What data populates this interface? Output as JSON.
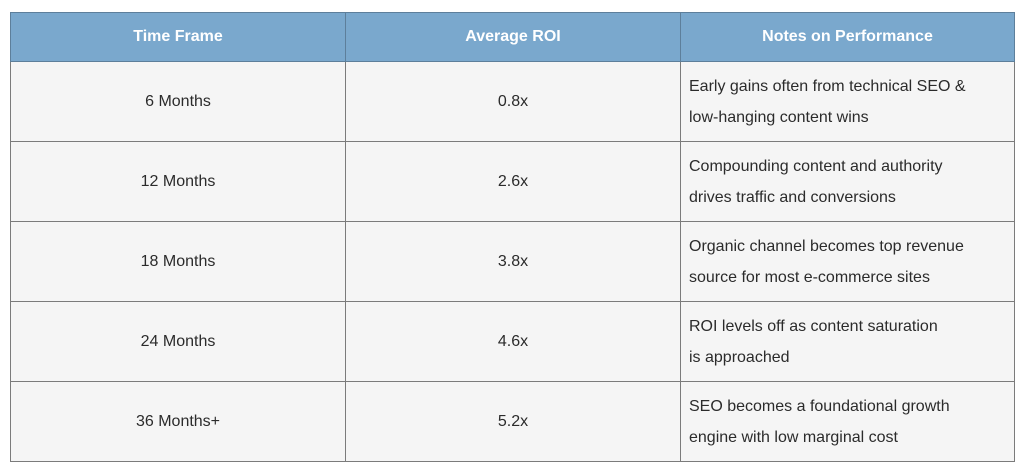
{
  "table": {
    "headers": [
      "Time Frame",
      "Average ROI",
      "Notes on Performance"
    ],
    "rows": [
      {
        "time_frame": "6 Months",
        "roi": "0.8x",
        "notes": [
          "Early gains often from technical SEO &",
          "low-hanging content wins"
        ]
      },
      {
        "time_frame": "12 Months",
        "roi": "2.6x",
        "notes": [
          "Compounding content and authority",
          "drives traffic and conversions"
        ]
      },
      {
        "time_frame": "18 Months",
        "roi": "3.8x",
        "notes": [
          "Organic channel becomes top revenue",
          "source for most e-commerce sites"
        ]
      },
      {
        "time_frame": "24 Months",
        "roi": "4.6x",
        "notes": [
          "ROI levels off as content saturation",
          "is approached"
        ]
      },
      {
        "time_frame": "36 Months+",
        "roi": "5.2x",
        "notes": [
          "SEO becomes a foundational growth",
          "engine with low marginal cost"
        ]
      }
    ]
  },
  "colors": {
    "header_bg": "#7aa8cd",
    "header_text": "#ffffff",
    "cell_bg": "#f5f5f5",
    "border": "#7b7b7b"
  }
}
